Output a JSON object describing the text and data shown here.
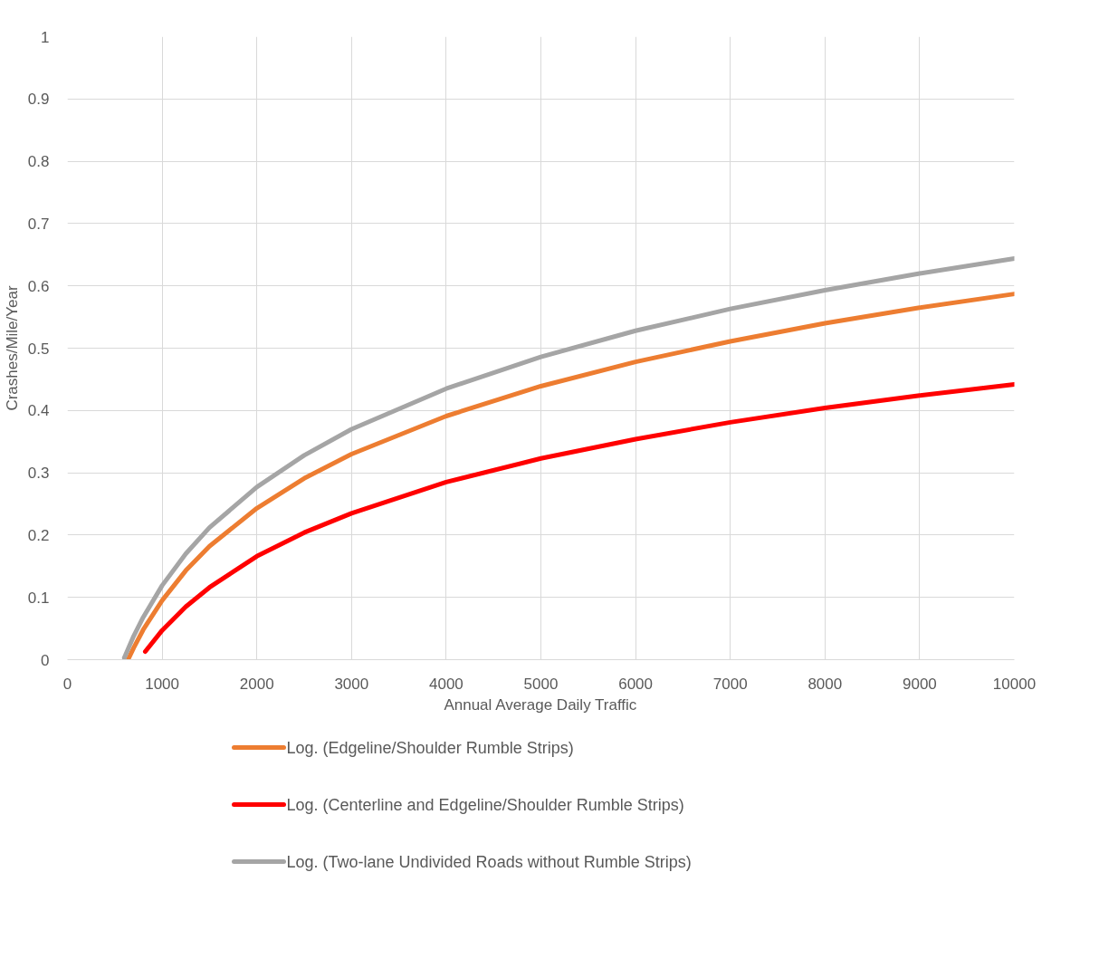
{
  "chart_data": {
    "type": "line",
    "xlabel": "Annual Average Daily Traffic",
    "ylabel": "Crashes/Mile/Year",
    "xlim": [
      0,
      10000
    ],
    "ylim": [
      0,
      1
    ],
    "xticks": [
      0,
      1000,
      2000,
      3000,
      4000,
      5000,
      6000,
      7000,
      8000,
      9000,
      10000
    ],
    "yticks": [
      0,
      0.1,
      0.2,
      0.3,
      0.4,
      0.5,
      0.6,
      0.7,
      0.8,
      0.9,
      1
    ],
    "grid": true,
    "legend": "bottom",
    "marker": "none",
    "line_style": "solid",
    "series": [
      {
        "name": "Log. (Edgeline/Shoulder Rumble Strips)",
        "color": "#ed7d31",
        "x": [
          640,
          700,
          800,
          1000,
          1250,
          1500,
          2000,
          2500,
          3000,
          4000,
          5000,
          6000,
          7000,
          8000,
          9000,
          10000
        ],
        "values": [
          0,
          0.019,
          0.048,
          0.095,
          0.143,
          0.182,
          0.243,
          0.291,
          0.33,
          0.391,
          0.439,
          0.478,
          0.511,
          0.54,
          0.565,
          0.587
        ]
      },
      {
        "name": "Log. (Centerline and Edgeline/Shoulder Rumble Strips)",
        "color": "#ff0000",
        "x": [
          822,
          1000,
          1250,
          1500,
          2000,
          2500,
          3000,
          4000,
          5000,
          6000,
          7000,
          8000,
          9000,
          10000
        ],
        "values": [
          0.013,
          0.047,
          0.085,
          0.116,
          0.166,
          0.204,
          0.235,
          0.285,
          0.323,
          0.354,
          0.381,
          0.404,
          0.424,
          0.442
        ]
      },
      {
        "name": "Log. (Two-lane Undivided Roads without Rumble Strips)",
        "color": "#a5a5a5",
        "x": [
          600,
          700,
          800,
          1000,
          1250,
          1500,
          2000,
          2500,
          3000,
          4000,
          5000,
          6000,
          7000,
          8000,
          9000,
          10000
        ],
        "values": [
          0.003,
          0.038,
          0.068,
          0.119,
          0.17,
          0.212,
          0.277,
          0.328,
          0.37,
          0.435,
          0.486,
          0.528,
          0.563,
          0.593,
          0.62,
          0.644
        ]
      }
    ]
  }
}
